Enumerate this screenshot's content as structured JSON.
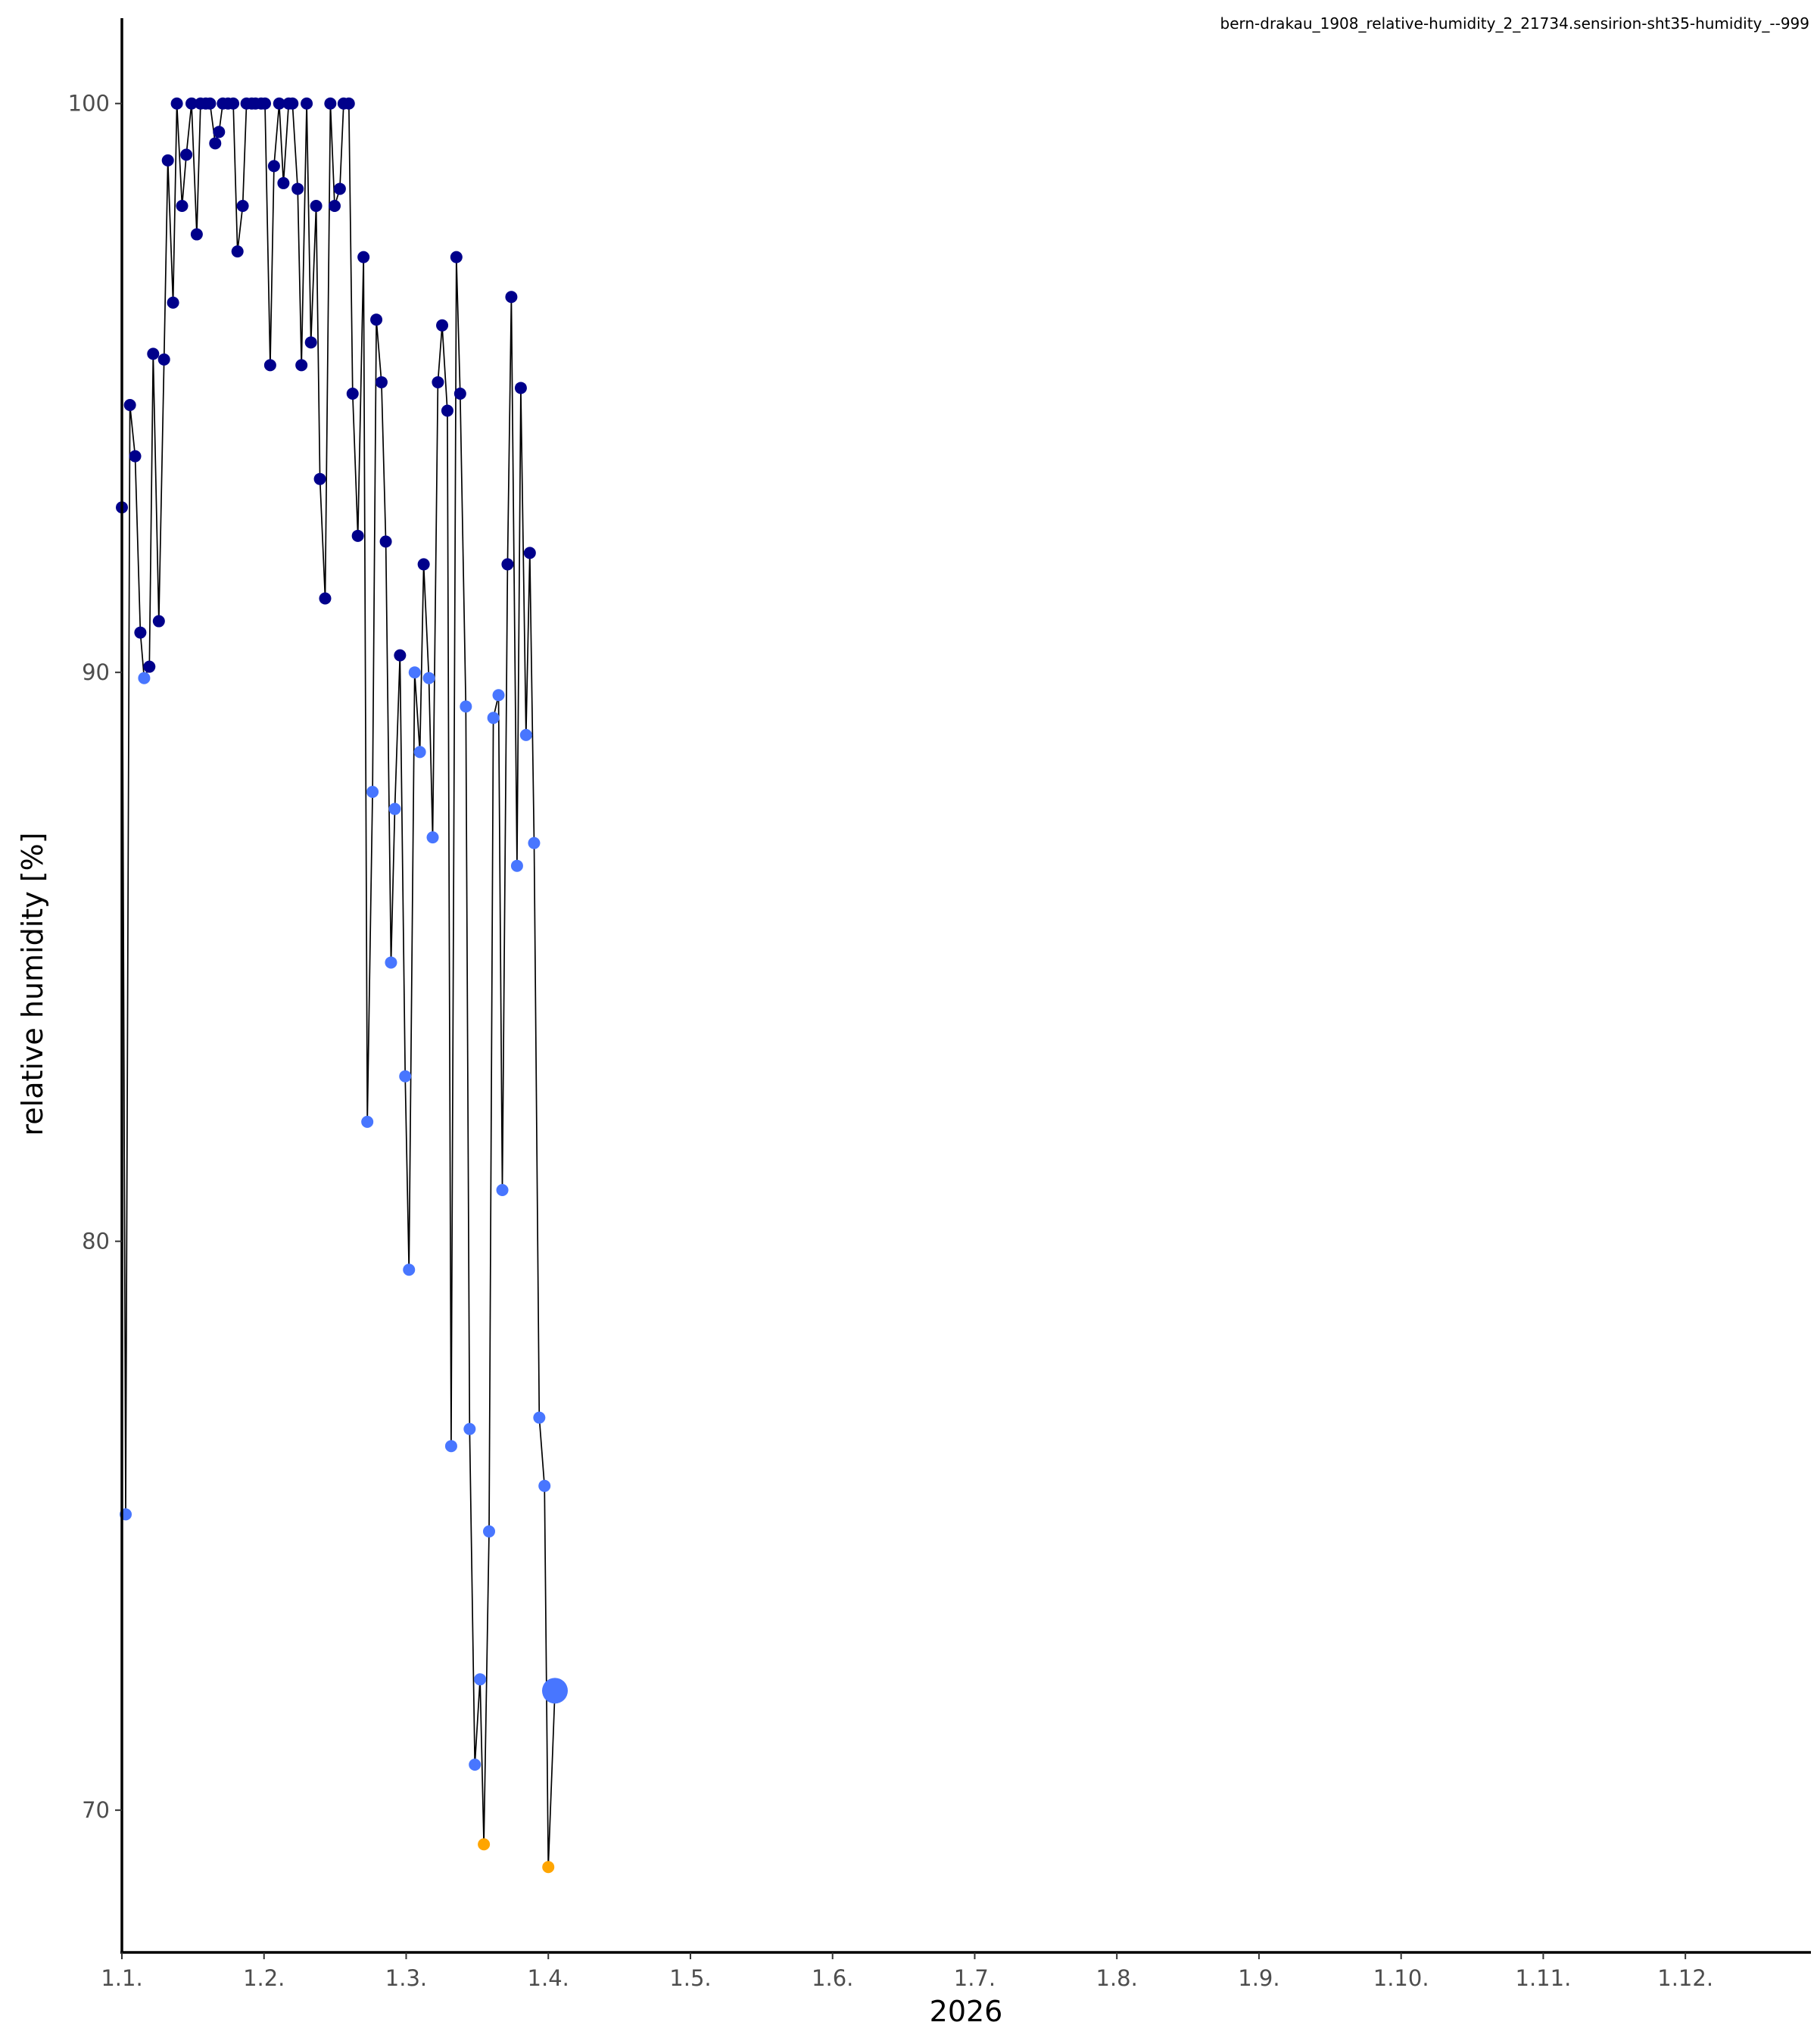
{
  "chart_data": {
    "type": "scatter",
    "title": "bern-drakau_1908_relative-humidity_2_21734.sensirion-sht35-humidity_--999",
    "xlabel": "2026",
    "ylabel": "relative humidity [%]",
    "x_unit": "days since 1 Jan",
    "xlim": [
      0,
      356.5
    ],
    "ylim": [
      67.5,
      101.5
    ],
    "x_ticks": [
      {
        "value": 0,
        "label": "1.1."
      },
      {
        "value": 30,
        "label": "1.2."
      },
      {
        "value": 60,
        "label": "1.3."
      },
      {
        "value": 90,
        "label": "1.4."
      },
      {
        "value": 120,
        "label": "1.5."
      },
      {
        "value": 150,
        "label": "1.6."
      },
      {
        "value": 180,
        "label": "1.7."
      },
      {
        "value": 210,
        "label": "1.8."
      },
      {
        "value": 240,
        "label": "1.9."
      },
      {
        "value": 270,
        "label": "1.10."
      },
      {
        "value": 300,
        "label": "1.11."
      },
      {
        "value": 330,
        "label": "1.12."
      }
    ],
    "y_ticks": [
      {
        "value": 70,
        "label": "70"
      },
      {
        "value": 80,
        "label": "80"
      },
      {
        "value": 90,
        "label": "90"
      },
      {
        "value": 100,
        "label": "100"
      }
    ],
    "grid": false,
    "legend": "none",
    "colors": {
      "high": "#00008b",
      "mid": "#4876ff",
      "low": "#ffa500",
      "line": "#000000"
    },
    "series": [
      {
        "name": "relative humidity",
        "points": [
          [
            0,
            92.9,
            "high"
          ],
          [
            0.8,
            75.2,
            "mid"
          ],
          [
            1.7,
            94.7,
            "high"
          ],
          [
            2.8,
            93.8,
            "high"
          ],
          [
            3.9,
            90.7,
            "high"
          ],
          [
            4.7,
            89.9,
            "mid"
          ],
          [
            5.8,
            90.1,
            "high"
          ],
          [
            6.6,
            95.6,
            "high"
          ],
          [
            7.8,
            90.9,
            "high"
          ],
          [
            8.9,
            95.5,
            "high"
          ],
          [
            9.7,
            99.0,
            "high"
          ],
          [
            10.8,
            96.5,
            "high"
          ],
          [
            11.6,
            100,
            "high"
          ],
          [
            12.7,
            98.2,
            "high"
          ],
          [
            13.6,
            99.1,
            "high"
          ],
          [
            14.7,
            100,
            "high"
          ],
          [
            15.8,
            97.7,
            "high"
          ],
          [
            16.6,
            100,
            "high"
          ],
          [
            17.7,
            100,
            "high"
          ],
          [
            18.6,
            100,
            "high"
          ],
          [
            19.7,
            99.3,
            "high"
          ],
          [
            20.5,
            99.5,
            "high"
          ],
          [
            21.3,
            100,
            "high"
          ],
          [
            22.4,
            100,
            "high"
          ],
          [
            23.5,
            100,
            "high"
          ],
          [
            24.4,
            97.4,
            "high"
          ],
          [
            25.5,
            98.2,
            "high"
          ],
          [
            26.3,
            100,
            "high"
          ],
          [
            27.4,
            100,
            "high"
          ],
          [
            28.2,
            100,
            "high"
          ],
          [
            29.4,
            100,
            "high"
          ],
          [
            30.2,
            100,
            "high"
          ],
          [
            31.3,
            95.4,
            "high"
          ],
          [
            32.1,
            98.9,
            "high"
          ],
          [
            33.2,
            100,
            "high"
          ],
          [
            34.1,
            98.6,
            "high"
          ],
          [
            35.2,
            100,
            "high"
          ],
          [
            36.0,
            100,
            "high"
          ],
          [
            37.1,
            98.5,
            "high"
          ],
          [
            37.9,
            95.4,
            "high"
          ],
          [
            39.0,
            100,
            "high"
          ],
          [
            39.9,
            95.8,
            "high"
          ],
          [
            41.0,
            98.2,
            "high"
          ],
          [
            41.8,
            93.4,
            "high"
          ],
          [
            42.9,
            91.3,
            "high"
          ],
          [
            44.0,
            100,
            "high"
          ],
          [
            44.9,
            98.2,
            "high"
          ],
          [
            46.0,
            98.5,
            "high"
          ],
          [
            46.8,
            100,
            "high"
          ],
          [
            47.9,
            100,
            "high"
          ],
          [
            48.7,
            94.9,
            "high"
          ],
          [
            49.8,
            92.4,
            "high"
          ],
          [
            51.0,
            97.3,
            "high"
          ],
          [
            51.8,
            82.1,
            "mid"
          ],
          [
            52.9,
            87.9,
            "mid"
          ],
          [
            53.7,
            96.2,
            "high"
          ],
          [
            54.8,
            95.1,
            "high"
          ],
          [
            55.7,
            92.3,
            "high"
          ],
          [
            56.8,
            84.9,
            "mid"
          ],
          [
            57.6,
            87.6,
            "mid"
          ],
          [
            58.7,
            90.3,
            "high"
          ],
          [
            59.8,
            82.9,
            "mid"
          ],
          [
            60.6,
            79.5,
            "mid"
          ],
          [
            61.8,
            90.0,
            "mid"
          ],
          [
            62.9,
            88.6,
            "mid"
          ],
          [
            63.7,
            91.9,
            "high"
          ],
          [
            64.8,
            89.9,
            "mid"
          ],
          [
            65.6,
            87.1,
            "mid"
          ],
          [
            66.7,
            95.1,
            "high"
          ],
          [
            67.6,
            96.1,
            "high"
          ],
          [
            68.7,
            94.6,
            "high"
          ],
          [
            69.5,
            76.4,
            "mid"
          ],
          [
            70.6,
            97.3,
            "high"
          ],
          [
            71.4,
            94.9,
            "high"
          ],
          [
            72.6,
            89.4,
            "mid"
          ],
          [
            73.4,
            76.7,
            "mid"
          ],
          [
            74.5,
            70.8,
            "mid"
          ],
          [
            75.6,
            72.3,
            "mid"
          ],
          [
            76.4,
            69.4,
            "low"
          ],
          [
            77.5,
            74.9,
            "mid"
          ],
          [
            78.4,
            89.2,
            "mid"
          ],
          [
            79.5,
            89.6,
            "mid"
          ],
          [
            80.3,
            80.9,
            "mid"
          ],
          [
            81.4,
            91.9,
            "high"
          ],
          [
            82.2,
            96.6,
            "high"
          ],
          [
            83.4,
            86.6,
            "mid"
          ],
          [
            84.2,
            95.0,
            "high"
          ],
          [
            85.3,
            88.9,
            "mid"
          ],
          [
            86.1,
            92.1,
            "high"
          ],
          [
            87.0,
            87.0,
            "mid"
          ],
          [
            88.1,
            76.9,
            "mid"
          ],
          [
            89.2,
            75.7,
            "mid"
          ],
          [
            90.0,
            69.0,
            "low"
          ],
          [
            91.4,
            72.1,
            "mid"
          ]
        ],
        "latest_index": 93
      }
    ]
  }
}
